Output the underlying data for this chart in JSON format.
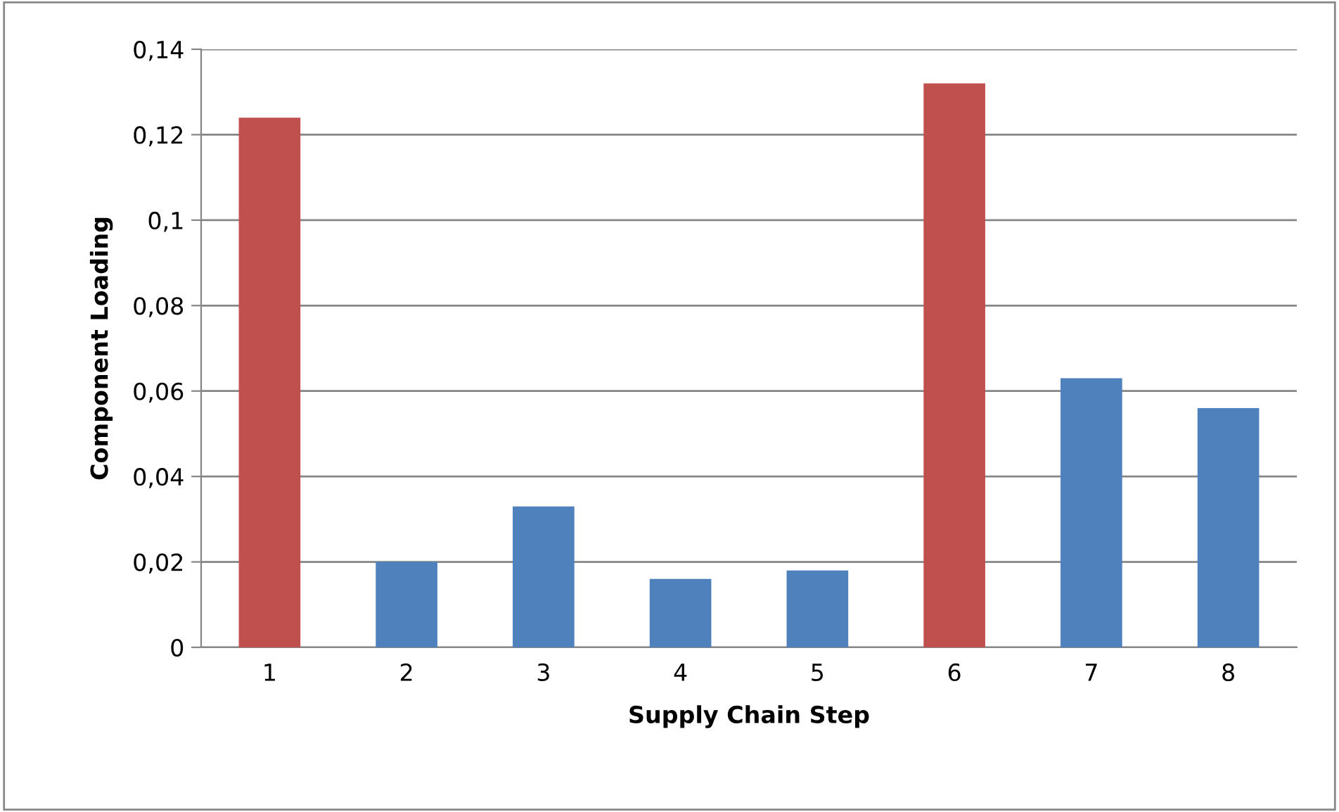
{
  "chart_data": {
    "type": "bar",
    "xlabel": "Supply Chain Step",
    "ylabel": "Component Loading",
    "categories": [
      "1",
      "2",
      "3",
      "4",
      "5",
      "6",
      "7",
      "8"
    ],
    "values": [
      0.124,
      0.02,
      0.033,
      0.016,
      0.018,
      0.132,
      0.063,
      0.056
    ],
    "colors": [
      "#c0504d",
      "#4f81bd",
      "#4f81bd",
      "#4f81bd",
      "#4f81bd",
      "#c0504d",
      "#4f81bd",
      "#4f81bd"
    ],
    "ylim": [
      0,
      0.14
    ],
    "yticks": [
      {
        "value": 0,
        "label": "0"
      },
      {
        "value": 0.02,
        "label": "0,02"
      },
      {
        "value": 0.04,
        "label": "0,04"
      },
      {
        "value": 0.06,
        "label": "0,06"
      },
      {
        "value": 0.08,
        "label": "0,08"
      },
      {
        "value": 0.1,
        "label": "0,1"
      },
      {
        "value": 0.12,
        "label": "0,12"
      },
      {
        "value": 0.14,
        "label": "0,14"
      }
    ],
    "grid": "y",
    "legend": false
  }
}
